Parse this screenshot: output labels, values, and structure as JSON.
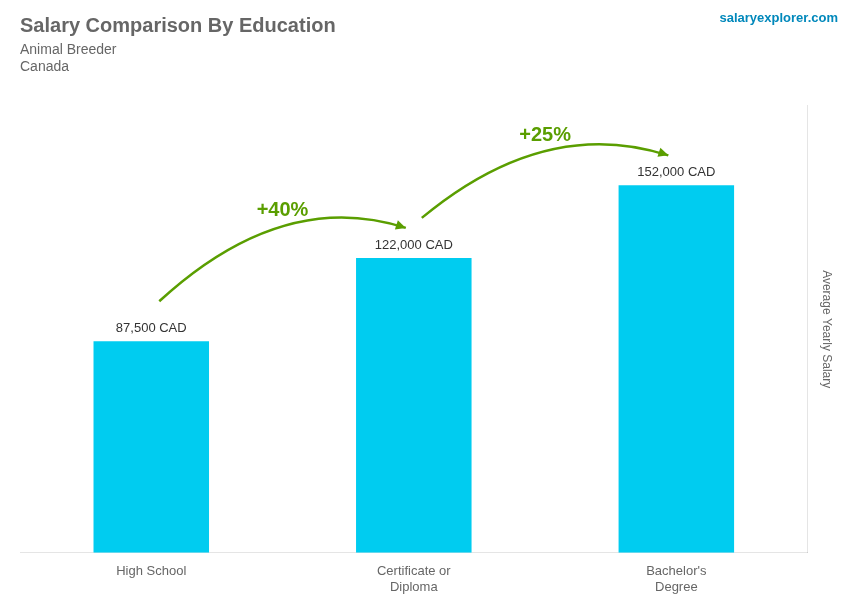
{
  "chart_data": {
    "type": "bar",
    "title": "Salary Comparison By Education",
    "subtitle": [
      "Animal Breeder",
      "Canada"
    ],
    "source": "salaryexplorer.com",
    "categories": [
      "High School",
      "Certificate or\nDiploma",
      "Bachelor's\nDegree"
    ],
    "values": [
      87500,
      122000,
      152000
    ],
    "value_labels": [
      "87,500 CAD",
      "122,000 CAD",
      "152,000 CAD"
    ],
    "data_labels": true,
    "annotations": [
      "+40%",
      "+25%"
    ],
    "y_label": "Average Yearly Salary",
    "color": "#00ccf0",
    "ylim": [
      0,
      185000
    ],
    "grid": false,
    "tick_labels": "x"
  }
}
